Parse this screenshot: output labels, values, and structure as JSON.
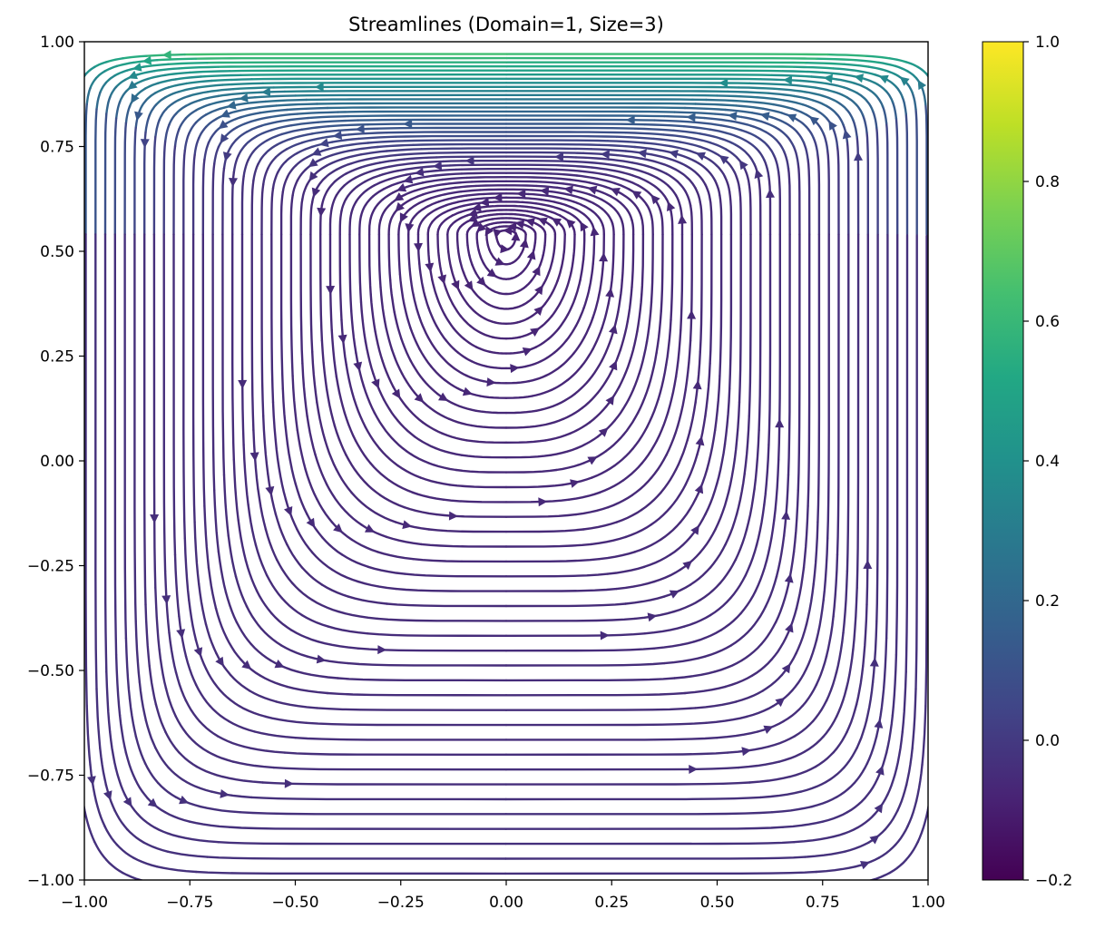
{
  "chart_data": {
    "type": "streamplot",
    "title": "Streamlines (Domain=1, Size=3)",
    "xlabel": "",
    "ylabel": "",
    "xlim": [
      -1.0,
      1.0
    ],
    "ylim": [
      -1.0,
      1.0
    ],
    "x_ticks": [
      "−1.00",
      "−0.75",
      "−0.50",
      "−0.25",
      "0.00",
      "0.25",
      "0.50",
      "0.75",
      "1.00"
    ],
    "y_ticks": [
      "−1.00",
      "−0.75",
      "−0.50",
      "−0.25",
      "0.00",
      "0.25",
      "0.50",
      "0.75",
      "1.00"
    ],
    "x_tick_values": [
      -1.0,
      -0.75,
      -0.5,
      -0.25,
      0.0,
      0.25,
      0.5,
      0.75,
      1.0
    ],
    "y_tick_values": [
      -1.0,
      -0.75,
      -0.5,
      -0.25,
      0.0,
      0.25,
      0.5,
      0.75,
      1.0
    ],
    "vortex_center": [
      0.0,
      0.54
    ],
    "flow_direction": "counterclockwise",
    "grid": false,
    "colorbar": {
      "colormap": "viridis",
      "range": [
        -0.2,
        1.0
      ],
      "ticks": [
        "−0.2",
        "0.0",
        "0.2",
        "0.4",
        "0.6",
        "0.8",
        "1.0"
      ],
      "tick_values": [
        -0.2,
        0.0,
        0.2,
        0.4,
        0.6,
        0.8,
        1.0
      ]
    },
    "colors": {
      "viridis": [
        "#440154",
        "#482475",
        "#414487",
        "#355f8d",
        "#2a788e",
        "#21918c",
        "#22a884",
        "#44bf70",
        "#7ad151",
        "#bddf26",
        "#fde725"
      ]
    }
  }
}
